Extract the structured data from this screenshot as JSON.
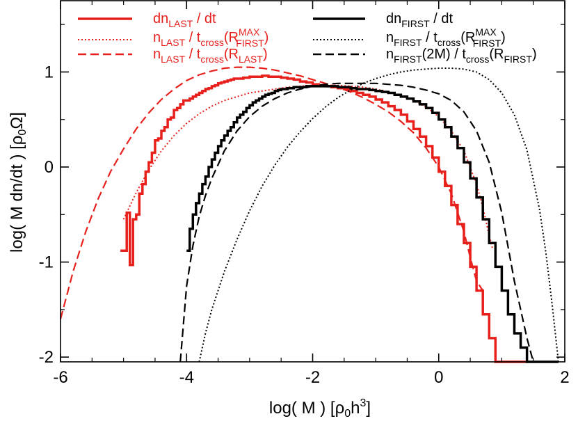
{
  "chart_data": {
    "type": "line",
    "xlabel": "log( M )   [ρ0h3]",
    "ylabel": "log( M dn/dt )   [ρ0Ω]",
    "xlim": [
      -6,
      2
    ],
    "ylim": [
      -2.05,
      1.75
    ],
    "x_ticks": [
      -6,
      -4,
      -2,
      0,
      2
    ],
    "x_tick_labels": [
      "-6",
      "-4",
      "-2",
      "0",
      "2"
    ],
    "y_ticks": [
      -2,
      -1,
      0,
      1
    ],
    "y_tick_labels": [
      "-2",
      "-1",
      "0",
      "1"
    ],
    "legend_placement": "top",
    "colors": {
      "last": "#e8201c",
      "first": "#000000"
    },
    "series": [
      {
        "name": "dnLAST / dt",
        "style": "solid-step",
        "group": "last",
        "x": [
          -5.05,
          -4.95,
          -4.9,
          -4.85,
          -4.8,
          -4.75,
          -4.7,
          -4.65,
          -4.6,
          -4.55,
          -4.5,
          -4.45,
          -4.4,
          -4.35,
          -4.3,
          -4.25,
          -4.2,
          -4.15,
          -4.1,
          -4.05,
          -4.0,
          -3.95,
          -3.9,
          -3.85,
          -3.8,
          -3.75,
          -3.7,
          -3.65,
          -3.6,
          -3.55,
          -3.5,
          -3.45,
          -3.4,
          -3.35,
          -3.3,
          -3.25,
          -3.2,
          -3.1,
          -3.0,
          -2.9,
          -2.8,
          -2.7,
          -2.6,
          -2.5,
          -2.4,
          -2.3,
          -2.2,
          -2.1,
          -2.0,
          -1.9,
          -1.8,
          -1.7,
          -1.6,
          -1.5,
          -1.4,
          -1.3,
          -1.2,
          -1.1,
          -1.0,
          -0.9,
          -0.8,
          -0.7,
          -0.6,
          -0.5,
          -0.4,
          -0.3,
          -0.2,
          -0.1,
          0.0,
          0.1,
          0.2,
          0.3,
          0.4,
          0.5,
          0.6,
          0.7,
          0.8,
          0.9,
          1.0,
          1.1,
          1.2,
          1.3
        ],
        "y": [
          -0.88,
          -0.48,
          -1.03,
          -0.55,
          -0.5,
          -0.28,
          -0.18,
          -0.05,
          0.05,
          0.15,
          0.28,
          0.3,
          0.38,
          0.42,
          0.5,
          0.52,
          0.6,
          0.62,
          0.66,
          0.7,
          0.7,
          0.72,
          0.74,
          0.76,
          0.78,
          0.8,
          0.82,
          0.83,
          0.85,
          0.86,
          0.88,
          0.89,
          0.9,
          0.91,
          0.92,
          0.93,
          0.93,
          0.94,
          0.95,
          0.95,
          0.96,
          0.95,
          0.95,
          0.94,
          0.93,
          0.92,
          0.9,
          0.89,
          0.87,
          0.86,
          0.85,
          0.84,
          0.83,
          0.82,
          0.8,
          0.78,
          0.76,
          0.74,
          0.71,
          0.68,
          0.64,
          0.6,
          0.55,
          0.48,
          0.4,
          0.32,
          0.22,
          0.1,
          -0.05,
          -0.2,
          -0.4,
          -0.6,
          -0.8,
          -1.05,
          -1.3,
          -1.55,
          -1.8,
          -2.05,
          -2.05,
          -2.05,
          -2.05,
          -2.05
        ]
      },
      {
        "name": "nLAST / tcross(RMAXFIRST)",
        "style": "dotted",
        "group": "last",
        "x": [
          -5.0,
          -4.8,
          -4.6,
          -4.4,
          -4.2,
          -4.0,
          -3.8,
          -3.6,
          -3.4,
          -3.2,
          -3.0,
          -2.8,
          -2.6,
          -2.4,
          -2.2,
          -2.0,
          -1.8,
          -1.6,
          -1.4,
          -1.2,
          -1.0,
          -0.8,
          -0.6,
          -0.4,
          -0.2,
          0.0,
          0.2,
          0.4,
          0.6,
          0.7,
          0.8,
          0.85
        ],
        "y": [
          -0.55,
          -0.27,
          -0.03,
          0.17,
          0.33,
          0.46,
          0.56,
          0.64,
          0.7,
          0.74,
          0.78,
          0.8,
          0.82,
          0.84,
          0.85,
          0.86,
          0.86,
          0.86,
          0.85,
          0.84,
          0.82,
          0.79,
          0.75,
          0.7,
          0.63,
          0.53,
          0.38,
          0.17,
          -0.18,
          -0.42,
          -0.72,
          -0.85
        ]
      },
      {
        "name": "nLAST / tcross(RLAST)",
        "style": "dashed",
        "group": "last",
        "x": [
          -6.0,
          -5.8,
          -5.6,
          -5.4,
          -5.2,
          -5.0,
          -4.8,
          -4.6,
          -4.4,
          -4.2,
          -4.0,
          -3.8,
          -3.6,
          -3.4,
          -3.2,
          -3.0,
          -2.8,
          -2.6,
          -2.4,
          -2.2,
          -2.0,
          -1.8,
          -1.6,
          -1.4,
          -1.2,
          -1.0,
          -0.8,
          -0.6,
          -0.4,
          -0.2,
          0.0,
          0.2,
          0.4,
          0.5,
          0.6,
          0.7
        ],
        "y": [
          -1.6,
          -1.1,
          -0.68,
          -0.33,
          -0.04,
          0.19,
          0.4,
          0.57,
          0.71,
          0.82,
          0.91,
          0.97,
          1.01,
          1.04,
          1.05,
          1.05,
          1.04,
          1.02,
          0.99,
          0.96,
          0.92,
          0.88,
          0.84,
          0.79,
          0.73,
          0.66,
          0.58,
          0.48,
          0.36,
          0.2,
          0.0,
          -0.28,
          -0.68,
          -0.95,
          -1.2,
          -1.3
        ]
      },
      {
        "name": "dnFIRST / dt",
        "style": "solid-step",
        "group": "first",
        "x": [
          -4.0,
          -3.95,
          -3.9,
          -3.85,
          -3.8,
          -3.75,
          -3.7,
          -3.65,
          -3.6,
          -3.55,
          -3.5,
          -3.45,
          -3.4,
          -3.35,
          -3.3,
          -3.25,
          -3.2,
          -3.15,
          -3.1,
          -3.05,
          -3.0,
          -2.95,
          -2.9,
          -2.85,
          -2.8,
          -2.75,
          -2.7,
          -2.65,
          -2.6,
          -2.55,
          -2.5,
          -2.4,
          -2.3,
          -2.2,
          -2.1,
          -2.0,
          -1.9,
          -1.8,
          -1.7,
          -1.6,
          -1.5,
          -1.4,
          -1.3,
          -1.2,
          -1.1,
          -1.0,
          -0.9,
          -0.8,
          -0.7,
          -0.6,
          -0.5,
          -0.4,
          -0.3,
          -0.2,
          -0.1,
          0.0,
          0.1,
          0.2,
          0.3,
          0.4,
          0.5,
          0.6,
          0.7,
          0.8,
          0.9,
          1.0,
          1.1,
          1.2,
          1.3,
          1.4,
          1.5,
          1.6,
          1.7,
          1.8
        ],
        "y": [
          -0.88,
          -0.65,
          -0.5,
          -0.38,
          -0.28,
          -0.18,
          -0.1,
          0.0,
          0.08,
          0.15,
          0.22,
          0.28,
          0.33,
          0.38,
          0.42,
          0.47,
          0.52,
          0.55,
          0.58,
          0.62,
          0.65,
          0.68,
          0.7,
          0.72,
          0.74,
          0.76,
          0.77,
          0.78,
          0.8,
          0.81,
          0.82,
          0.83,
          0.84,
          0.84,
          0.85,
          0.85,
          0.85,
          0.85,
          0.85,
          0.84,
          0.84,
          0.83,
          0.82,
          0.82,
          0.81,
          0.8,
          0.79,
          0.78,
          0.76,
          0.74,
          0.72,
          0.69,
          0.66,
          0.62,
          0.57,
          0.5,
          0.42,
          0.32,
          0.2,
          0.05,
          -0.12,
          -0.32,
          -0.55,
          -0.8,
          -1.05,
          -1.3,
          -1.55,
          -1.75,
          -1.9,
          -2.05,
          -2.05,
          -2.05,
          -2.05,
          -2.05
        ]
      },
      {
        "name": "nFIRST / tcross(RMAXFIRST)",
        "style": "dotted",
        "group": "first",
        "x": [
          -3.8,
          -3.7,
          -3.6,
          -3.4,
          -3.2,
          -3.0,
          -2.8,
          -2.6,
          -2.4,
          -2.2,
          -2.0,
          -1.8,
          -1.6,
          -1.4,
          -1.2,
          -1.0,
          -0.8,
          -0.6,
          -0.4,
          -0.2,
          0.0,
          0.2,
          0.4,
          0.6,
          0.8,
          1.0,
          1.2,
          1.4,
          1.6,
          1.7,
          1.8,
          1.9
        ],
        "y": [
          -2.05,
          -1.75,
          -1.5,
          -1.1,
          -0.76,
          -0.46,
          -0.2,
          0.02,
          0.21,
          0.37,
          0.51,
          0.63,
          0.73,
          0.81,
          0.88,
          0.93,
          0.97,
          1.0,
          1.02,
          1.03,
          1.04,
          1.04,
          1.03,
          1.0,
          0.92,
          0.78,
          0.55,
          0.18,
          -0.45,
          -0.9,
          -1.45,
          -2.05
        ]
      },
      {
        "name": "nFIRST(2M) / tcross(RFIRST)",
        "style": "dashed",
        "group": "first",
        "x": [
          -4.1,
          -4.0,
          -3.9,
          -3.8,
          -3.7,
          -3.6,
          -3.4,
          -3.2,
          -3.0,
          -2.8,
          -2.6,
          -2.4,
          -2.2,
          -2.0,
          -1.8,
          -1.6,
          -1.4,
          -1.2,
          -1.0,
          -0.8,
          -0.6,
          -0.4,
          -0.2,
          0.0,
          0.2,
          0.4,
          0.6,
          0.8,
          1.0,
          1.2,
          1.4,
          1.5
        ],
        "y": [
          -2.05,
          -1.25,
          -0.83,
          -0.52,
          -0.3,
          -0.12,
          0.17,
          0.38,
          0.53,
          0.64,
          0.72,
          0.78,
          0.82,
          0.85,
          0.87,
          0.88,
          0.88,
          0.88,
          0.88,
          0.87,
          0.86,
          0.84,
          0.81,
          0.77,
          0.7,
          0.58,
          0.38,
          0.05,
          -0.48,
          -1.2,
          -1.8,
          -2.05
        ]
      }
    ]
  }
}
